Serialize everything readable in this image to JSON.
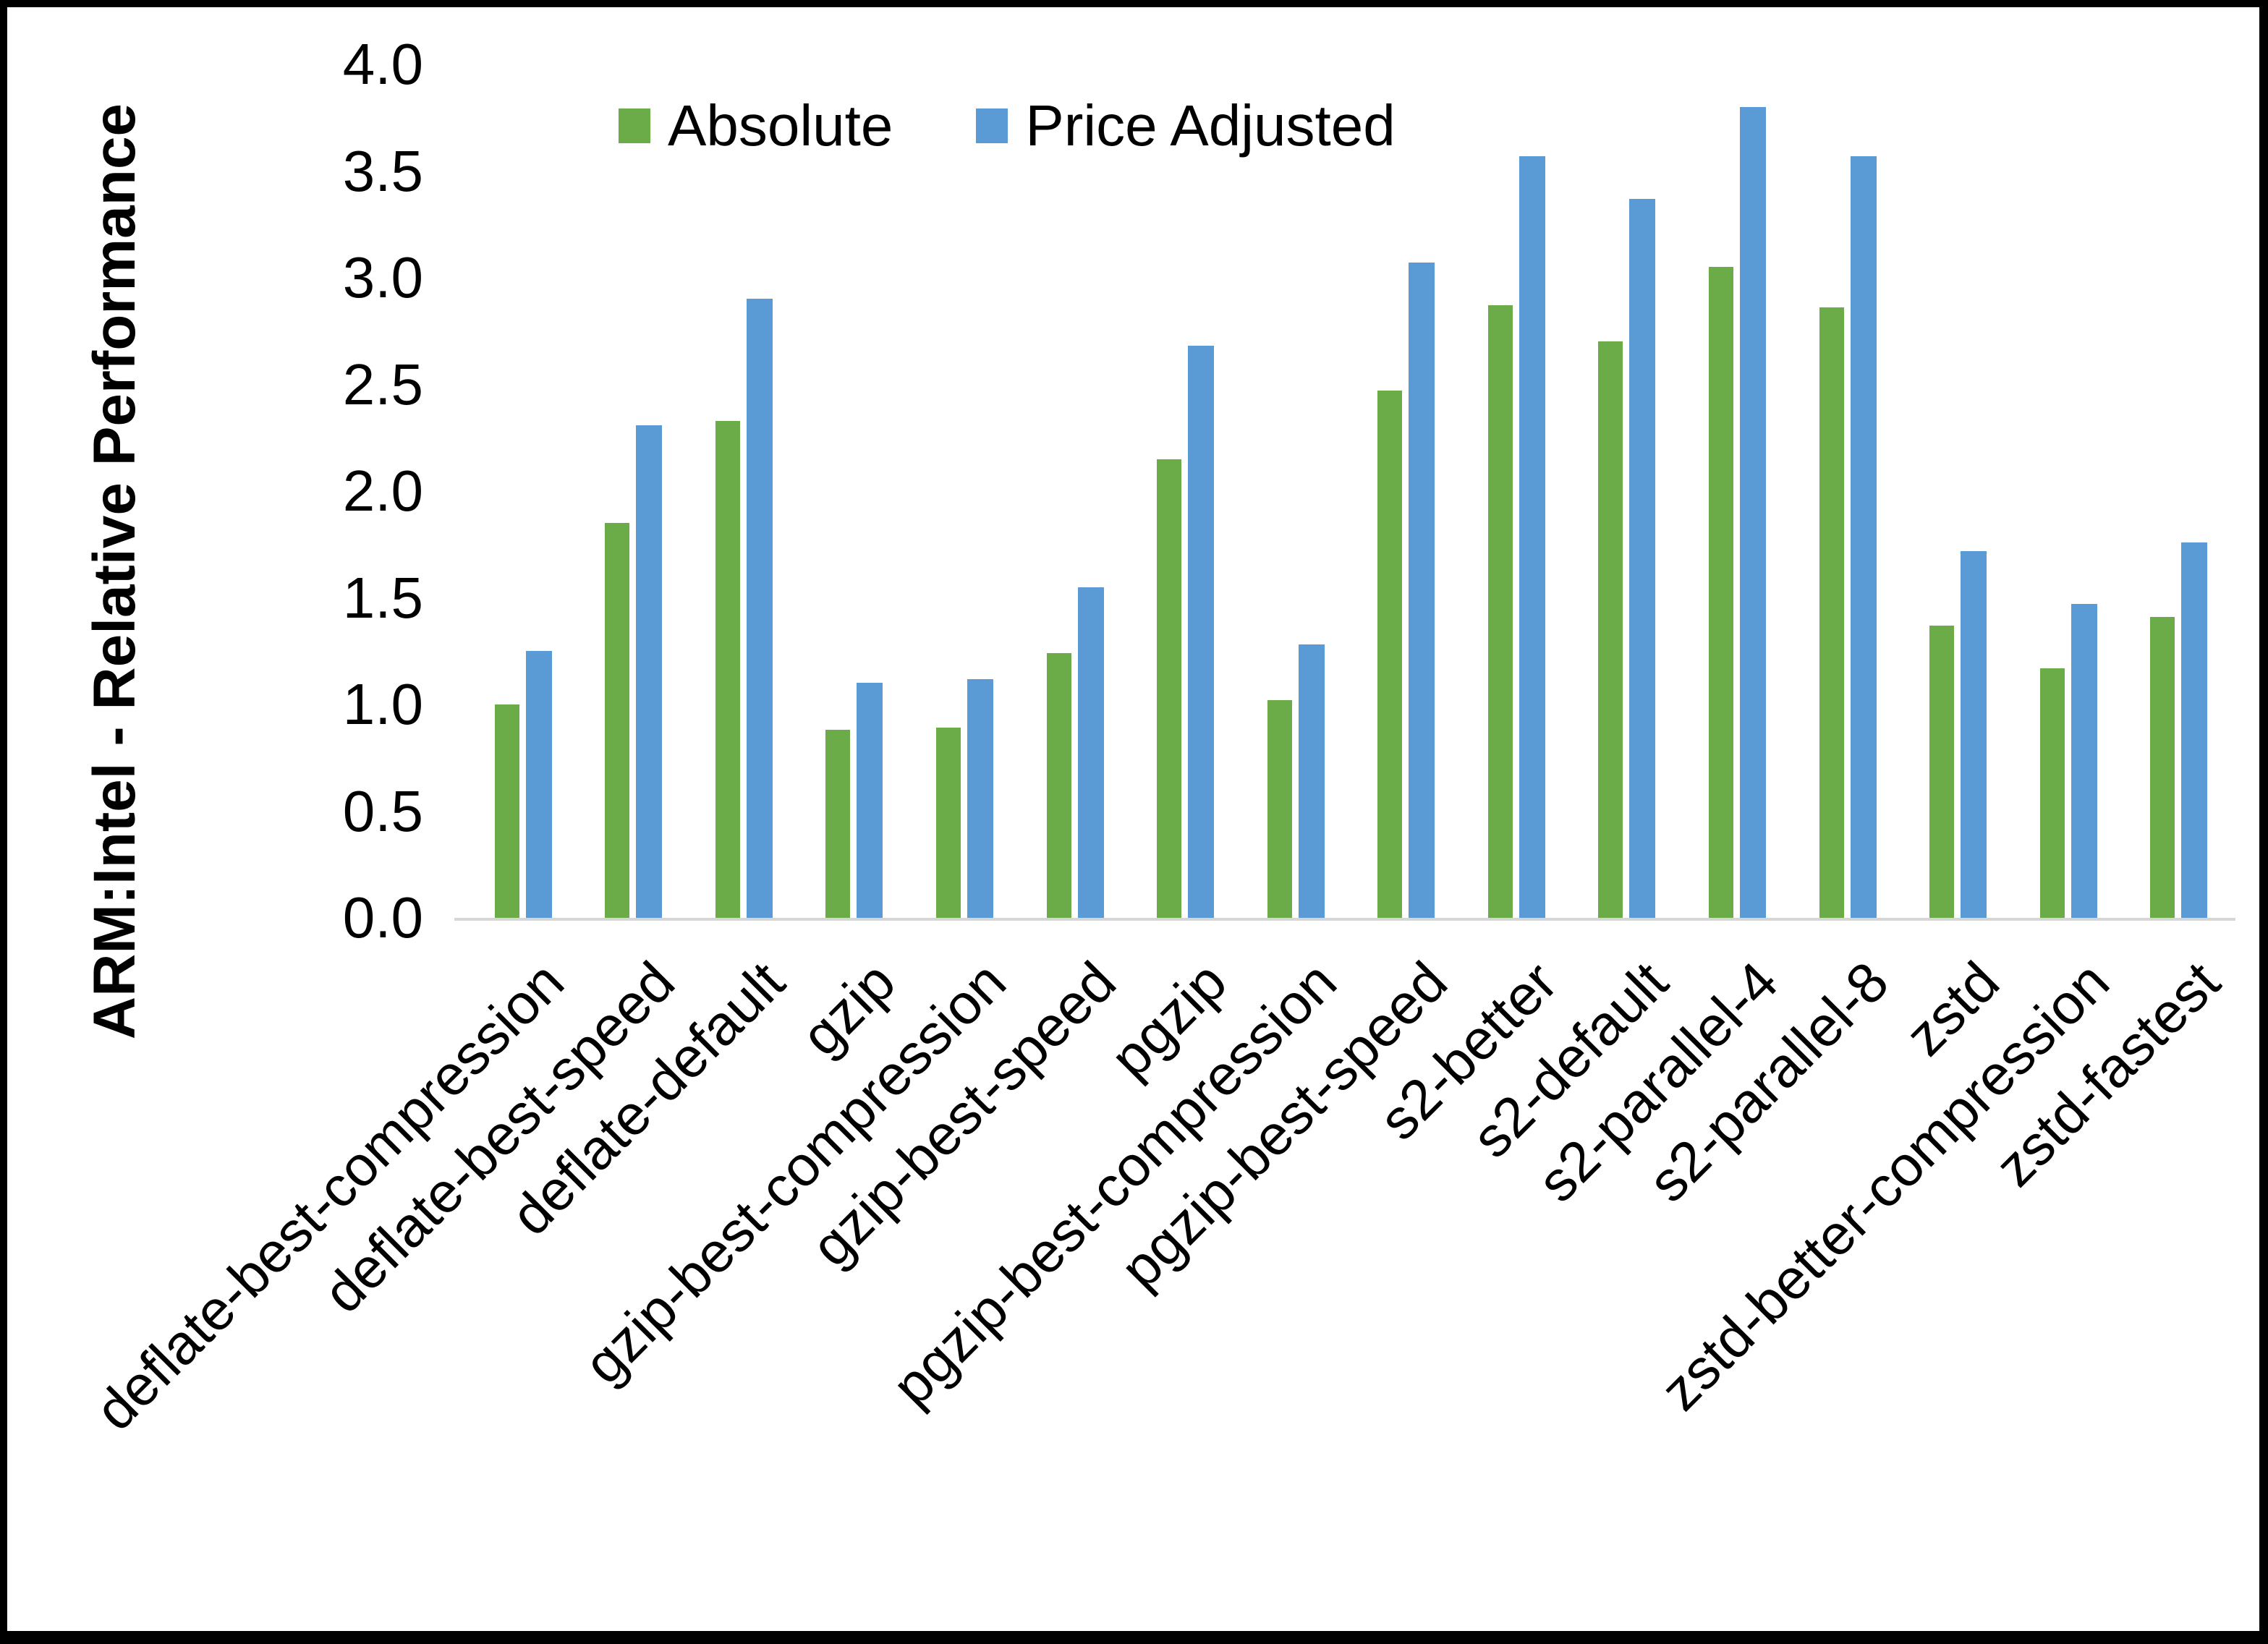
{
  "chart_data": {
    "type": "bar",
    "title": "",
    "xlabel": "",
    "ylabel": "ARM:Intel - Relative Performance",
    "ylim": [
      0.0,
      4.0
    ],
    "ytick_step": 0.5,
    "ytick_labels": [
      "0.0",
      "0.5",
      "1.0",
      "1.5",
      "2.0",
      "2.5",
      "3.0",
      "3.5",
      "4.0"
    ],
    "grid": false,
    "legend_position": "top-center",
    "axis_line_color": "#d6d6d6",
    "categories": [
      "deflate-best-compression",
      "deflate-best-speed",
      "deflate-default",
      "gzip",
      "gzip-best-compression",
      "gzip-best-speed",
      "pgzip",
      "pgzip-best-compression",
      "pgzip-best-speed",
      "s2-better",
      "s2-default",
      "s2-parallel-4",
      "s2-parallel-8",
      "zstd",
      "zstd-better-compression",
      "zstd-fastest"
    ],
    "series": [
      {
        "name": "Absolute",
        "color": "#6cac48",
        "values": [
          1.0,
          1.85,
          2.33,
          0.88,
          0.89,
          1.24,
          2.15,
          1.02,
          2.47,
          2.87,
          2.7,
          3.05,
          2.86,
          1.37,
          1.17,
          1.41
        ]
      },
      {
        "name": "Price Adjusted",
        "color": "#5b9bd5",
        "values": [
          1.25,
          2.31,
          2.9,
          1.1,
          1.12,
          1.55,
          2.68,
          1.28,
          3.07,
          3.57,
          3.37,
          3.8,
          3.57,
          1.72,
          1.47,
          1.76
        ]
      }
    ]
  }
}
